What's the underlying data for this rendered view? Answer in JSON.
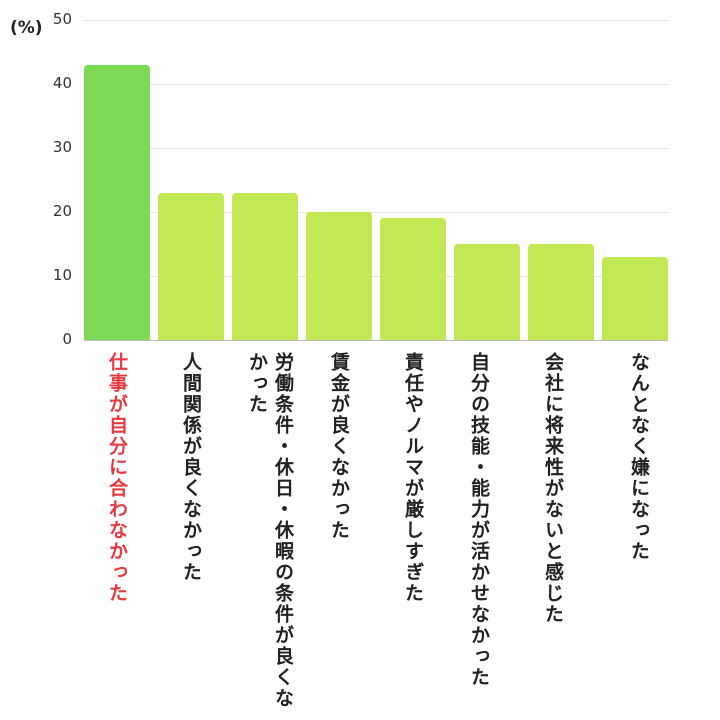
{
  "chart_data": {
    "type": "bar",
    "title": "",
    "xlabel": "",
    "ylabel": "(%)",
    "ylim": [
      0,
      50
    ],
    "yticks": [
      0,
      10,
      20,
      30,
      40,
      50
    ],
    "grid": true,
    "categories": [
      "仕事が自分に合わなかった",
      "人間関係が良くなかった",
      "労働条件・休日・休暇の条件が良くなかった",
      "賃金が良くなかった",
      "責任やノルマが厳しすぎた",
      "自分の技能・能力が活かせなかった",
      "会社に将来性がないと感じた",
      "なんとなく嫌になった"
    ],
    "values": [
      43,
      23,
      23,
      20,
      19,
      15,
      15,
      13
    ],
    "highlight_index": 0,
    "colors": {
      "highlight_bar": "#7ed957",
      "bar": "#c2e853",
      "highlight_label": "#e8383d",
      "label": "#222222"
    }
  },
  "axis": {
    "unit": "(%)",
    "ticks": [
      "0",
      "10",
      "20",
      "30",
      "40",
      "50"
    ]
  },
  "labels": {
    "c0": "仕事が自分に合わなかった",
    "c1": "人間関係が良くなかった",
    "c2a": "労働条件・休日・休暇の",
    "c2b": "条件が良くなかった",
    "c3": "賃金が良くなかった",
    "c4": "責任やノルマが厳しすぎた",
    "c5a": "自分の技能・能力が活かせ",
    "c5b": "なかった",
    "c6a": "会社に将来性がないと感じ",
    "c6b": "た",
    "c7": "なんとなく嫌になった"
  }
}
